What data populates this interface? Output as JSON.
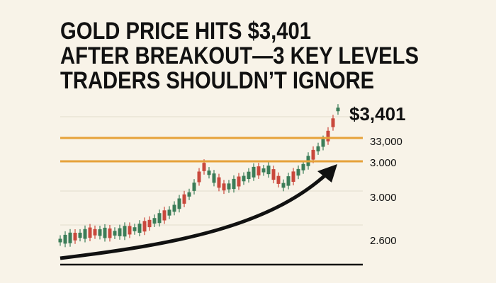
{
  "headline": {
    "lines": [
      "GOLD PRICE HITS $3,401",
      "AFTER BREAKOUT—3 KEY LEVELS",
      "TRADERS SHOULDN’T IGNORE"
    ]
  },
  "price_label": "$3,401",
  "axis_labels": [
    "33,000",
    "3.000",
    "3.000",
    "2.600"
  ]
}
